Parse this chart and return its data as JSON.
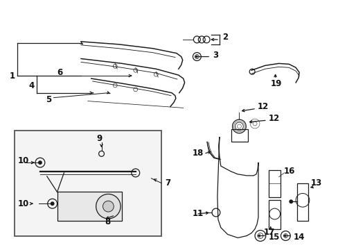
{
  "bg_color": "#ffffff",
  "lc": "#1a1a1a",
  "lw": 0.9,
  "fs": 8.5,
  "fig_w": 4.89,
  "fig_h": 3.6,
  "dpi": 100
}
